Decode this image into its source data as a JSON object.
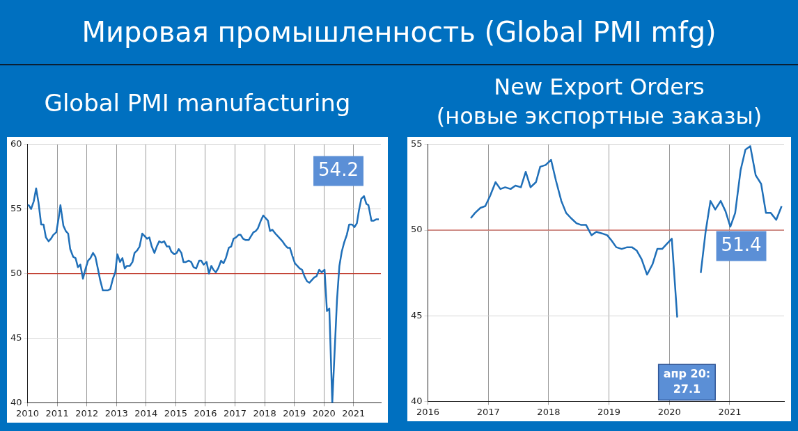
{
  "chart_data": [
    {
      "type": "other",
      "title": "Мировая промышленность (Global PMI mfg)"
    },
    {
      "type": "line",
      "title": "Global PMI manufacturing",
      "color": "#1f6fb8",
      "marker": "none",
      "grid": true,
      "x": [
        2010.0,
        2010.04,
        2010.12,
        2010.21,
        2010.29,
        2010.37,
        2010.46,
        2010.54,
        2010.62,
        2010.71,
        2010.79,
        2010.87,
        2010.97,
        2011.05,
        2011.11,
        2011.21,
        2011.29,
        2011.37,
        2011.44,
        2011.54,
        2011.62,
        2011.7,
        2011.78,
        2011.87,
        2011.96,
        2012.04,
        2012.12,
        2012.21,
        2012.29,
        2012.38,
        2012.45,
        2012.54,
        2012.63,
        2012.71,
        2012.79,
        2012.88,
        2012.96,
        2013.03,
        2013.12,
        2013.2,
        2013.28,
        2013.35,
        2013.45,
        2013.54,
        2013.61,
        2013.7,
        2013.78,
        2013.87,
        2013.95,
        2014.03,
        2014.11,
        2014.19,
        2014.28,
        2014.36,
        2014.44,
        2014.52,
        2014.61,
        2014.7,
        2014.78,
        2014.85,
        2014.95,
        2015.03,
        2015.1,
        2015.19,
        2015.26,
        2015.34,
        2015.44,
        2015.52,
        2015.6,
        2015.69,
        2015.79,
        2015.86,
        2015.94,
        2016.04,
        2016.12,
        2016.2,
        2016.27,
        2016.35,
        2016.43,
        2016.53,
        2016.61,
        2016.69,
        2016.79,
        2016.87,
        2016.95,
        2017.03,
        2017.12,
        2017.19,
        2017.27,
        2017.36,
        2017.46,
        2017.54,
        2017.62,
        2017.7,
        2017.77,
        2017.87,
        2017.95,
        2018.03,
        2018.11,
        2018.18,
        2018.26,
        2018.36,
        2018.44,
        2018.52,
        2018.6,
        2018.69,
        2018.77,
        2018.85,
        2018.93,
        2019.02,
        2019.1,
        2019.18,
        2019.26,
        2019.34,
        2019.43,
        2019.51,
        2019.59,
        2019.67,
        2019.75,
        2019.84,
        2019.92,
        2020.02,
        2020.1,
        2020.18,
        2020.28,
        2020.44,
        2020.52,
        2020.6,
        2020.68,
        2020.77,
        2020.85,
        2020.95,
        2021.03,
        2021.11,
        2021.18,
        2021.26,
        2021.35,
        2021.43,
        2021.5,
        2021.6,
        2021.68,
        2021.76,
        2021.85
      ],
      "values": [
        55.3,
        55.3,
        55.0,
        55.6,
        56.6,
        55.5,
        53.8,
        53.8,
        52.8,
        52.5,
        52.7,
        53.0,
        53.2,
        54.3,
        55.3,
        53.7,
        53.3,
        53.1,
        51.9,
        51.3,
        51.2,
        50.5,
        50.7,
        49.6,
        50.4,
        51.0,
        51.2,
        51.6,
        51.3,
        50.3,
        49.5,
        48.7,
        48.7,
        48.7,
        48.8,
        49.6,
        50.1,
        51.5,
        50.9,
        51.2,
        50.4,
        50.6,
        50.6,
        50.9,
        51.6,
        51.8,
        52.1,
        53.1,
        52.9,
        52.7,
        52.8,
        52.1,
        51.6,
        52.1,
        52.5,
        52.4,
        52.5,
        52.1,
        52.1,
        51.7,
        51.5,
        51.6,
        51.9,
        51.6,
        50.9,
        50.9,
        51.0,
        50.9,
        50.5,
        50.4,
        51.0,
        51.0,
        50.7,
        50.9,
        50.0,
        50.6,
        50.3,
        50.1,
        50.4,
        51.0,
        50.8,
        51.2,
        52.0,
        52.1,
        52.7,
        52.8,
        53.0,
        53.0,
        52.7,
        52.6,
        52.6,
        52.9,
        53.2,
        53.3,
        53.5,
        54.1,
        54.5,
        54.3,
        54.1,
        53.3,
        53.4,
        53.1,
        52.9,
        52.7,
        52.5,
        52.2,
        52.0,
        52.0,
        51.4,
        50.8,
        50.6,
        50.4,
        50.3,
        49.8,
        49.4,
        49.3,
        49.5,
        49.7,
        49.8,
        50.3,
        50.1,
        50.3,
        47.1,
        47.3,
        40,
        48.0,
        50.6,
        51.7,
        52.4,
        53.0,
        53.8,
        53.8,
        53.6,
        53.9,
        54.9,
        55.8,
        56.0,
        55.4,
        55.3,
        54.1,
        54.1,
        54.2,
        54.2
      ],
      "xlim": [
        2010,
        2021.92
      ],
      "xticks": [
        2010,
        2011,
        2012,
        2013,
        2014,
        2015,
        2016,
        2017,
        2018,
        2019,
        2020,
        2021
      ],
      "ylim": [
        40,
        60
      ],
      "yticks": [
        40,
        45,
        50,
        55,
        60
      ],
      "ref_lines": [
        {
          "axis": "y",
          "value": 50,
          "color": "#c0392b"
        }
      ],
      "annotations": [
        {
          "text": "54.2",
          "x": 2021.85,
          "y": 54.2
        }
      ]
    },
    {
      "type": "line",
      "title": "New Export Orders\n(новые экспортные заказы)",
      "color": "#1f6fb8",
      "marker": "none",
      "grid": true,
      "x": [
        2016.71,
        2016.78,
        2016.87,
        2016.95,
        2017.03,
        2017.12,
        2017.2,
        2017.28,
        2017.37,
        2017.45,
        2017.54,
        2017.62,
        2017.7,
        2017.79,
        2017.86,
        2017.95,
        2018.04,
        2018.12,
        2018.21,
        2018.29,
        2018.37,
        2018.46,
        2018.54,
        2018.62,
        2018.71,
        2018.79,
        2018.89,
        2018.97,
        2019.04,
        2019.12,
        2019.21,
        2019.3,
        2019.38,
        2019.46,
        2019.54,
        2019.63,
        2019.72,
        2019.8,
        2019.88,
        2019.96,
        2020.04,
        2020.13,
        2020.29,
        2020.44,
        2020.52,
        2020.6,
        2020.68,
        2020.76,
        2020.85,
        2020.93,
        2021.01,
        2021.09,
        2021.18,
        2021.26,
        2021.34,
        2021.43,
        2021.52,
        2021.6,
        2021.68,
        2021.77,
        2021.86
      ],
      "values": [
        50.7,
        51.0,
        51.3,
        51.4,
        52.0,
        52.8,
        52.4,
        52.5,
        52.4,
        52.6,
        52.5,
        53.4,
        52.5,
        52.8,
        53.7,
        53.8,
        54.1,
        52.9,
        51.7,
        51.0,
        50.7,
        50.4,
        50.3,
        50.3,
        49.7,
        49.9,
        49.8,
        49.7,
        49.4,
        49.0,
        48.9,
        49.0,
        49.0,
        48.8,
        48.3,
        47.4,
        48.0,
        48.9,
        48.9,
        49.2,
        49.5,
        44.9,
        null,
        null,
        47.5,
        49.9,
        51.7,
        51.2,
        51.7,
        51.1,
        50.2,
        51.0,
        53.5,
        54.7,
        54.9,
        53.2,
        52.7,
        51.0,
        51.0,
        50.6,
        51.4
      ],
      "xlim": [
        2016,
        2021.9
      ],
      "xticks": [
        2016,
        2017,
        2018,
        2019,
        2020,
        2021
      ],
      "ylim": [
        40,
        55
      ],
      "yticks": [
        40,
        45,
        50,
        55
      ],
      "ref_lines": [
        {
          "axis": "y",
          "value": 50,
          "color": "#c0392b"
        }
      ],
      "annotations": [
        {
          "text": "51.4",
          "x": 2021.86,
          "y": 51.4
        },
        "апр 20:\n27.1"
      ]
    }
  ]
}
